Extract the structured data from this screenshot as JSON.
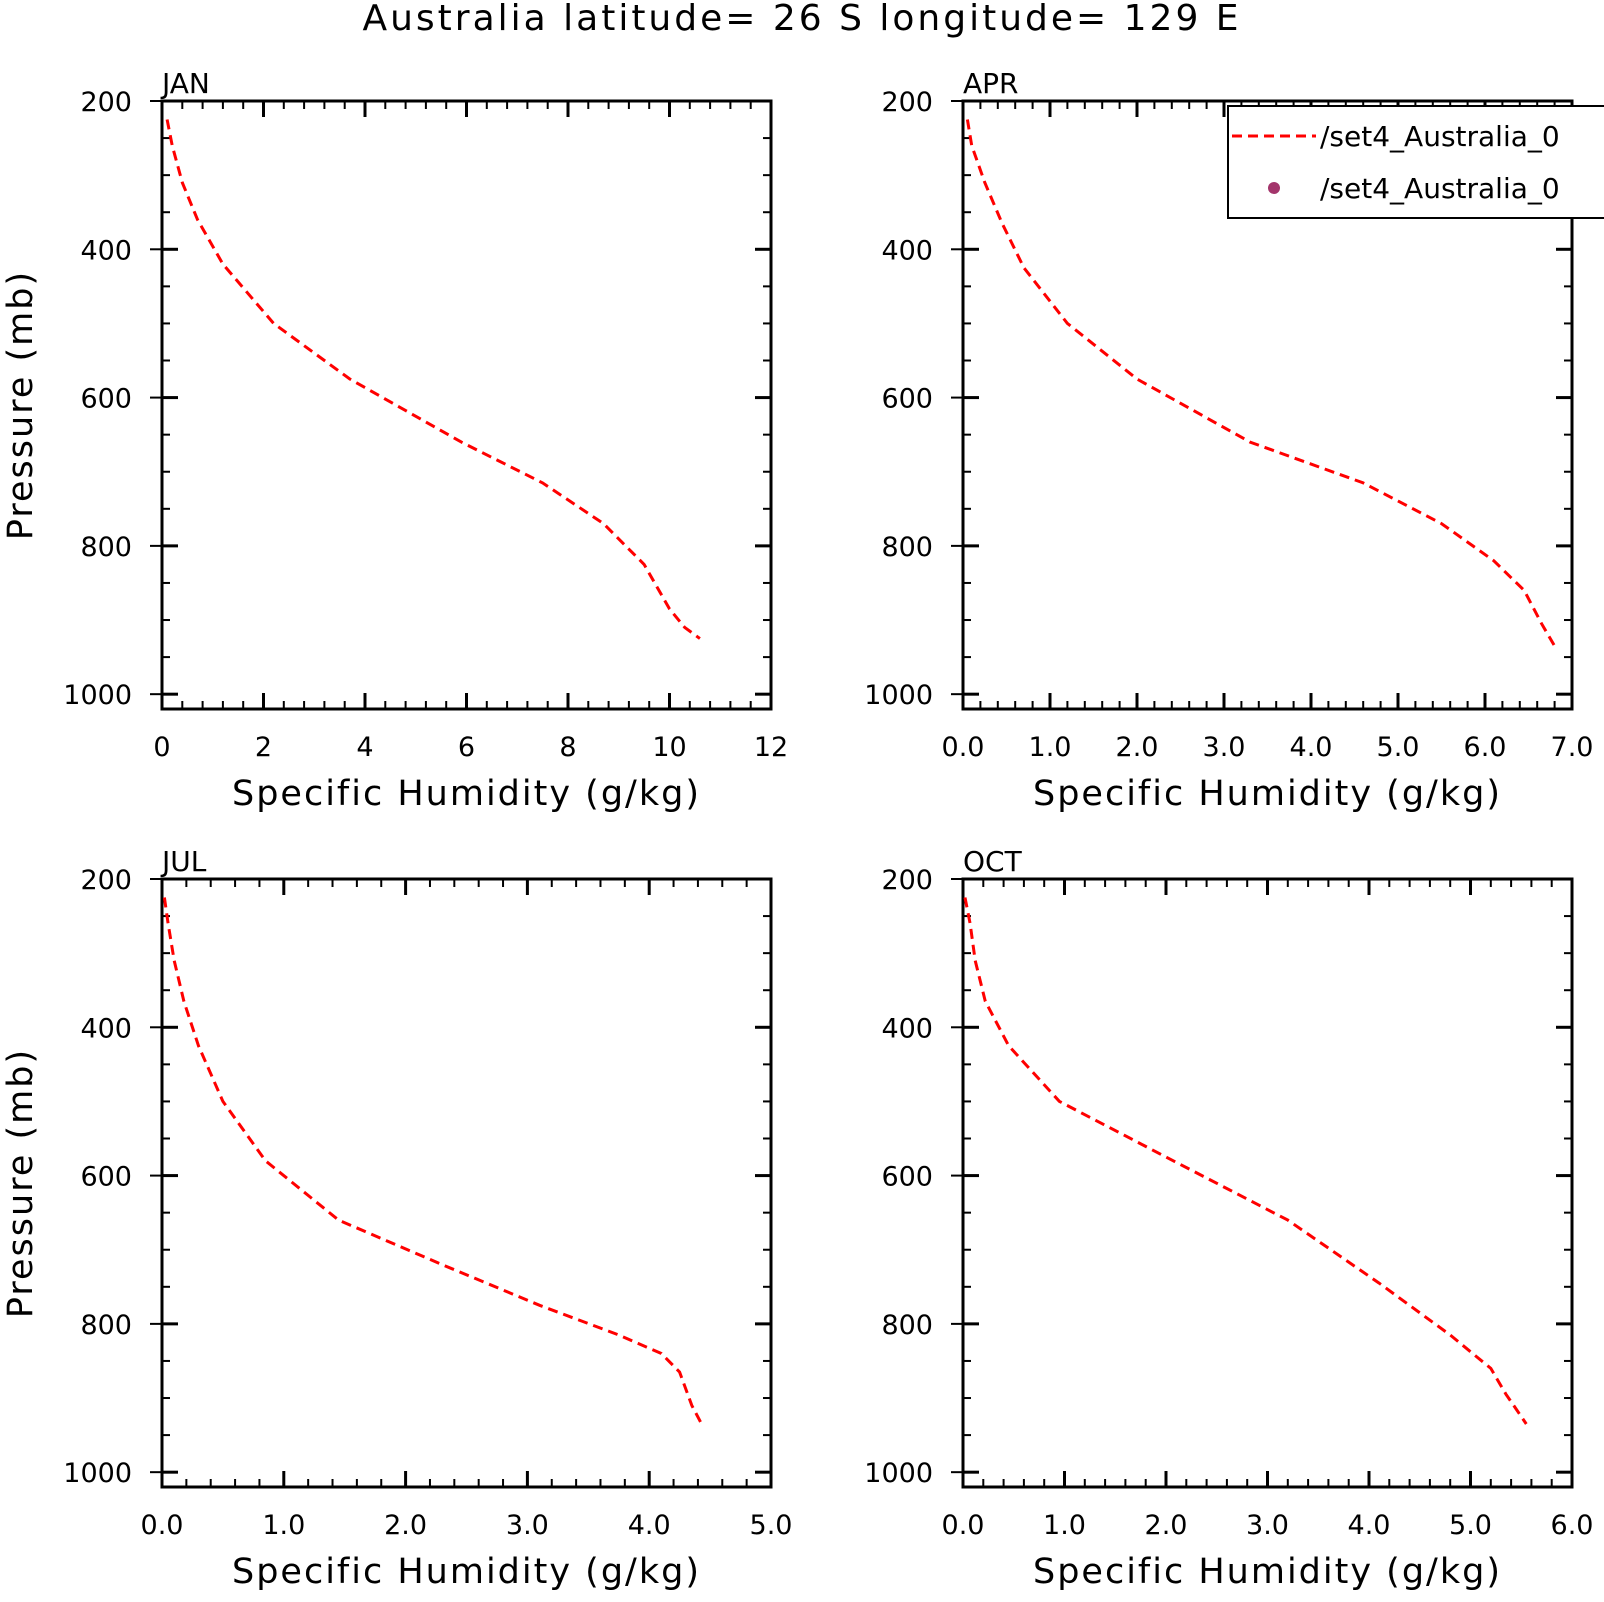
{
  "title": "Australia  latitude= 26 S longitude= 129 E",
  "legend": {
    "entries": [
      {
        "label": "/set4_Australia_0",
        "marker": "dashed-line",
        "color": "#ff0000"
      },
      {
        "label": "/set4_Australia_0",
        "marker": "dot",
        "color": "#a3356b"
      }
    ]
  },
  "colors": {
    "series_line": "#ff0000",
    "legend_dot": "#a3356b",
    "axes": "#000000"
  },
  "chart_data": [
    {
      "type": "line",
      "panel_label": "JAN",
      "xlabel": "Specific Humidity (g/kg)",
      "ylabel": "Pressure (mb)",
      "xlim": [
        0,
        12
      ],
      "ylim": [
        1020,
        200
      ],
      "y_inverted": true,
      "xticks": [
        0,
        2,
        4,
        6,
        8,
        10,
        12
      ],
      "xtick_labels": [
        "0",
        "2",
        "4",
        "6",
        "8",
        "10",
        "12"
      ],
      "yticks": [
        200,
        400,
        600,
        800,
        1000
      ],
      "ytick_labels": [
        "200",
        "400",
        "600",
        "800",
        "1000"
      ],
      "series": [
        {
          "x": [
            0.1,
            0.2,
            0.4,
            0.7,
            1.2,
            2.2,
            3.7,
            5.9,
            7.5,
            8.7,
            9.5,
            10.0,
            10.3,
            10.6
          ],
          "y": [
            225,
            260,
            310,
            360,
            420,
            500,
            575,
            660,
            715,
            770,
            825,
            885,
            910,
            925
          ]
        }
      ],
      "grid": false
    },
    {
      "type": "line",
      "panel_label": "APR",
      "xlabel": "Specific Humidity (g/kg)",
      "ylabel": "",
      "xlim": [
        0,
        7
      ],
      "ylim": [
        1020,
        200
      ],
      "y_inverted": true,
      "xticks": [
        0,
        1,
        2,
        3,
        4,
        5,
        6,
        7
      ],
      "xtick_labels": [
        "0.0",
        "1.0",
        "2.0",
        "3.0",
        "4.0",
        "5.0",
        "6.0",
        "7.0"
      ],
      "yticks": [
        200,
        400,
        600,
        800,
        1000
      ],
      "ytick_labels": [
        "200",
        "400",
        "600",
        "800",
        "1000"
      ],
      "series": [
        {
          "x": [
            0.05,
            0.1,
            0.25,
            0.45,
            0.7,
            1.2,
            2.0,
            3.3,
            4.6,
            5.5,
            6.1,
            6.45,
            6.65,
            6.8
          ],
          "y": [
            225,
            260,
            310,
            365,
            425,
            500,
            575,
            660,
            715,
            770,
            820,
            860,
            905,
            935
          ]
        }
      ],
      "grid": false,
      "legend_position": "top-right"
    },
    {
      "type": "line",
      "panel_label": "JUL",
      "xlabel": "Specific Humidity (g/kg)",
      "ylabel": "Pressure (mb)",
      "xlim": [
        0,
        5
      ],
      "ylim": [
        1020,
        200
      ],
      "y_inverted": true,
      "xticks": [
        0,
        1,
        2,
        3,
        4,
        5
      ],
      "xtick_labels": [
        "0.0",
        "1.0",
        "2.0",
        "3.0",
        "4.0",
        "5.0"
      ],
      "yticks": [
        200,
        400,
        600,
        800,
        1000
      ],
      "ytick_labels": [
        "200",
        "400",
        "600",
        "800",
        "1000"
      ],
      "series": [
        {
          "x": [
            0.02,
            0.05,
            0.1,
            0.18,
            0.3,
            0.5,
            0.85,
            1.45,
            2.3,
            3.1,
            3.75,
            4.1,
            4.25,
            4.35,
            4.43
          ],
          "y": [
            225,
            260,
            310,
            365,
            425,
            500,
            580,
            660,
            720,
            775,
            815,
            840,
            865,
            910,
            935
          ]
        }
      ],
      "grid": false
    },
    {
      "type": "line",
      "panel_label": "OCT",
      "xlabel": "Specific Humidity (g/kg)",
      "ylabel": "",
      "xlim": [
        0,
        6
      ],
      "ylim": [
        1020,
        200
      ],
      "y_inverted": true,
      "xticks": [
        0,
        1,
        2,
        3,
        4,
        5,
        6
      ],
      "xtick_labels": [
        "0.0",
        "1.0",
        "2.0",
        "3.0",
        "4.0",
        "5.0",
        "6.0"
      ],
      "yticks": [
        200,
        400,
        600,
        800,
        1000
      ],
      "ytick_labels": [
        "200",
        "400",
        "600",
        "800",
        "1000"
      ],
      "series": [
        {
          "x": [
            0.02,
            0.07,
            0.12,
            0.22,
            0.45,
            0.95,
            2.0,
            3.2,
            4.1,
            4.8,
            5.2,
            5.35,
            5.45,
            5.55
          ],
          "y": [
            225,
            260,
            310,
            365,
            425,
            500,
            575,
            660,
            745,
            815,
            860,
            895,
            915,
            935
          ]
        }
      ],
      "grid": false
    }
  ]
}
